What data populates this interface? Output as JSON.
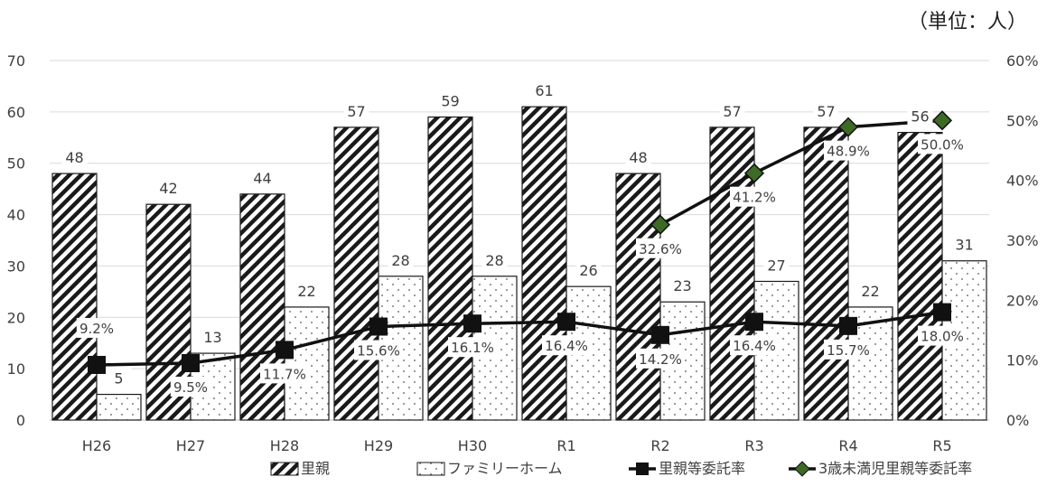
{
  "unit_note": "（単位：人）",
  "chart_data": {
    "type": "bar",
    "categories": [
      "H26",
      "H27",
      "H28",
      "H29",
      "H30",
      "R1",
      "R2",
      "R3",
      "R4",
      "R5"
    ],
    "ylim": [
      0,
      70
    ],
    "yticks": [
      0,
      10,
      20,
      30,
      40,
      50,
      60,
      70
    ],
    "y2lim": [
      0,
      60
    ],
    "y2ticks": [
      "0%",
      "10%",
      "20%",
      "30%",
      "40%",
      "50%",
      "60%"
    ],
    "grid": true,
    "legend_position": "bottom",
    "series": [
      {
        "name": "里親",
        "type": "bar",
        "pattern": "diagonal-hatch",
        "values": [
          48,
          42,
          44,
          57,
          59,
          61,
          48,
          57,
          57,
          56
        ],
        "labels": [
          "48",
          "42",
          "44",
          "57",
          "59",
          "61",
          "48",
          "57",
          "57",
          "56"
        ]
      },
      {
        "name": "ファミリーホーム",
        "type": "bar",
        "pattern": "dots",
        "values": [
          5,
          13,
          22,
          28,
          28,
          26,
          23,
          27,
          22,
          31
        ],
        "labels": [
          "5",
          "13",
          "22",
          "28",
          "28",
          "26",
          "23",
          "27",
          "22",
          "31"
        ]
      },
      {
        "name": "里親等委託率",
        "type": "line",
        "axis": "right",
        "marker": "square",
        "color": "#111111",
        "values": [
          9.2,
          9.5,
          11.7,
          15.6,
          16.1,
          16.4,
          14.2,
          16.4,
          15.7,
          18.0
        ],
        "labels": [
          "9.2%",
          "9.5%",
          "11.7%",
          "15.6%",
          "16.1%",
          "16.4%",
          "14.2%",
          "16.4%",
          "15.7%",
          "18.0%"
        ]
      },
      {
        "name": "3歳未満児里親等委託率",
        "type": "line",
        "axis": "right",
        "marker": "diamond",
        "color": "#111111",
        "marker_color": "#3d6b26",
        "values": [
          null,
          null,
          null,
          null,
          null,
          null,
          32.6,
          41.2,
          48.9,
          50.0
        ],
        "labels": [
          "",
          "",
          "",
          "",
          "",
          "",
          "32.6%",
          "41.2%",
          "48.9%",
          "50.0%"
        ]
      }
    ]
  }
}
